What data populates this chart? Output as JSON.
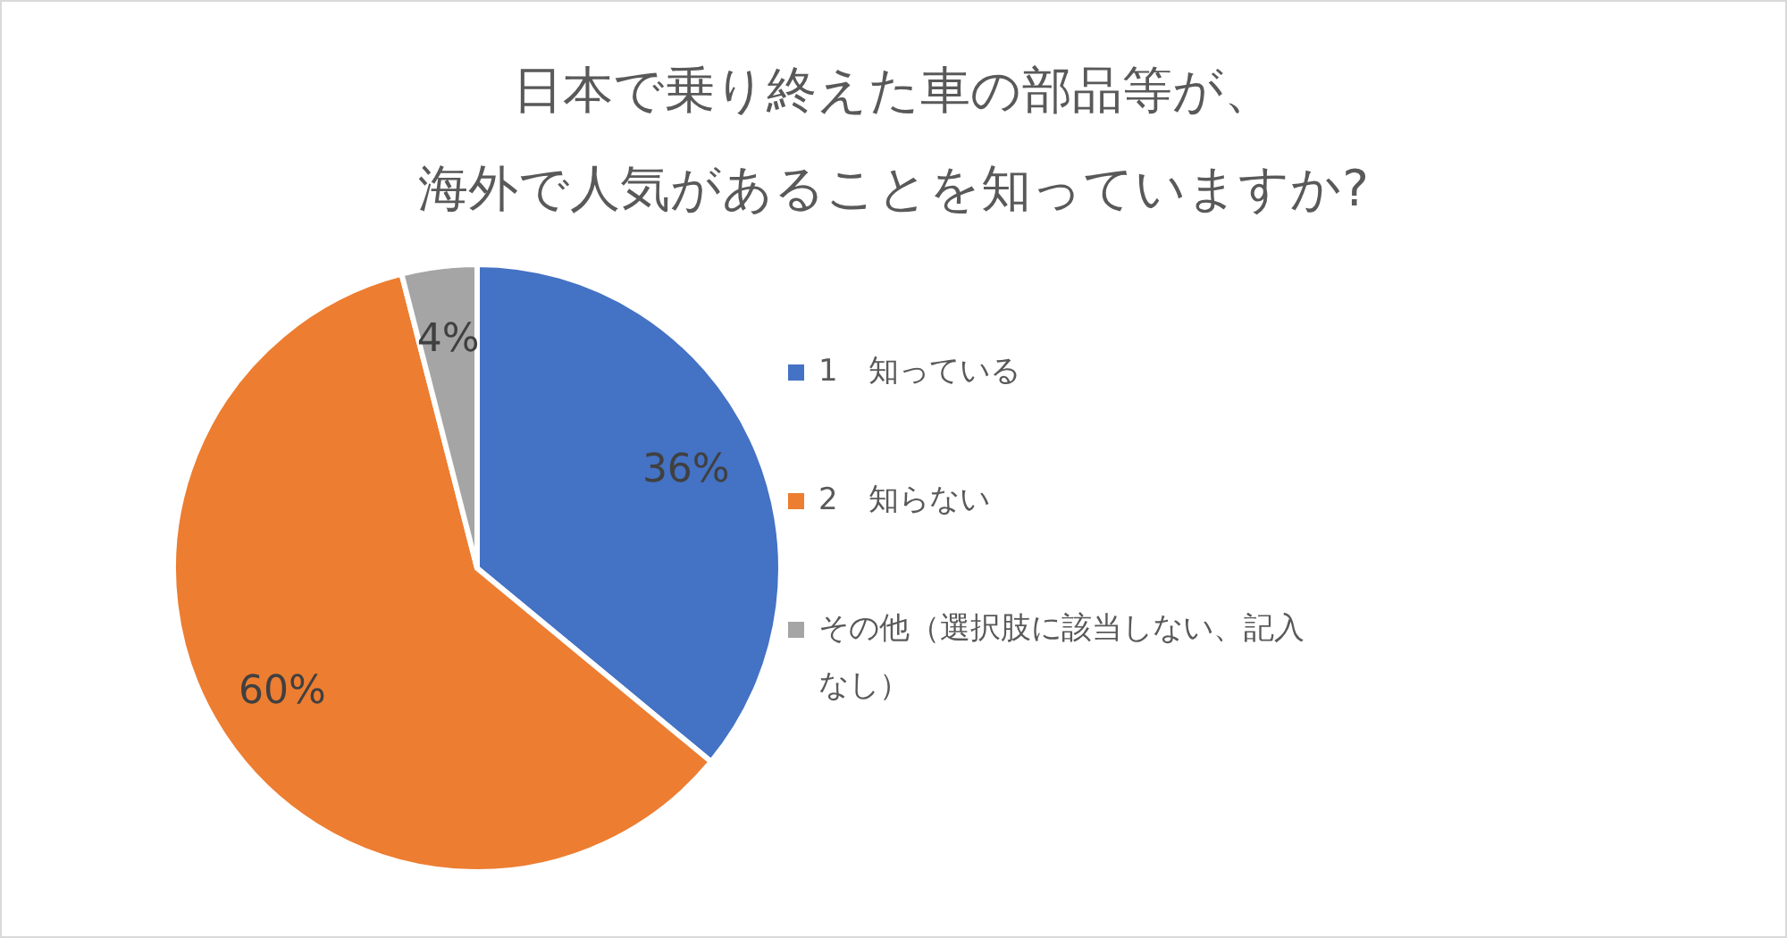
{
  "chart_data": {
    "type": "pie",
    "title": "日本で乗り終えた車の部品等が、海外で人気があることを知っていますか?",
    "categories": [
      "1　知っている",
      "2　知らない",
      "その他（選択肢に該当しない、記入なし）"
    ],
    "values": [
      36,
      60,
      4
    ],
    "colors": [
      "#4472c4",
      "#ed7d31",
      "#a5a5a5"
    ],
    "value_labels": [
      "36%",
      "60%",
      "4%"
    ],
    "legend": "right"
  }
}
